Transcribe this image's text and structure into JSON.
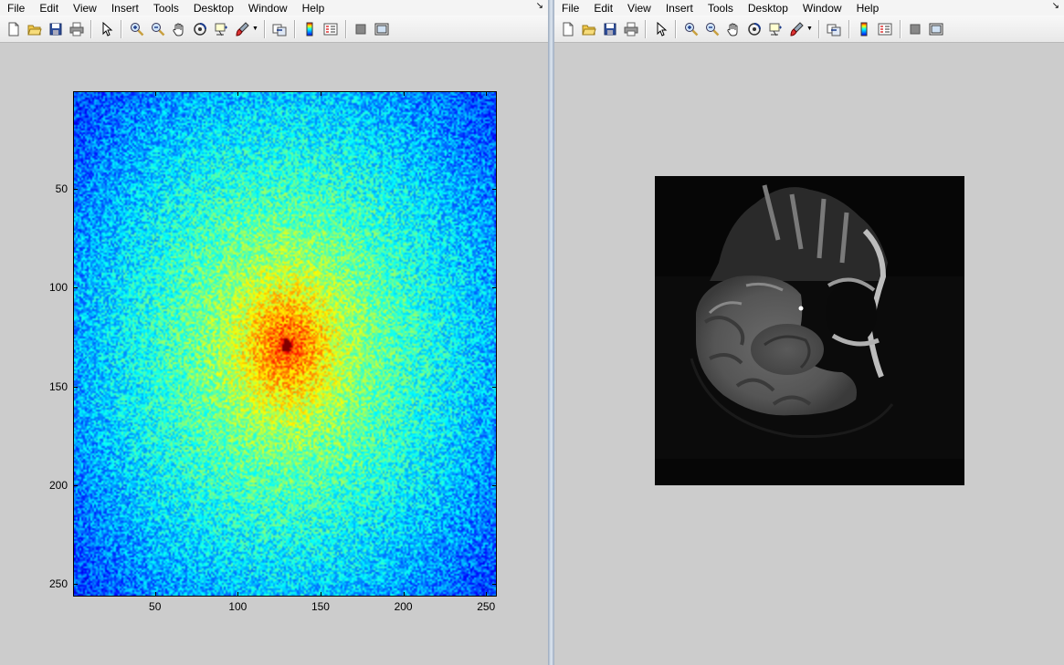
{
  "menu": [
    "File",
    "Edit",
    "View",
    "Insert",
    "Tools",
    "Desktop",
    "Window",
    "Help"
  ],
  "dock_glyph": "↘",
  "toolbar_icons": [
    "new-figure-icon",
    "open-file-icon",
    "save-icon",
    "print-icon",
    "select-arrow-icon",
    "zoom-in-icon",
    "zoom-out-icon",
    "pan-hand-icon",
    "rotate-3d-icon",
    "data-cursor-icon",
    "brush-icon",
    "link-plot-icon",
    "colorbar-icon",
    "legend-icon",
    "hide-plot-tools-icon",
    "show-plot-tools-icon"
  ],
  "left_figure": {
    "chart_data": {
      "type": "heatmap",
      "colormap": "jet",
      "x_ticks": [
        "50",
        "100",
        "150",
        "200",
        "250"
      ],
      "y_ticks": [
        "50",
        "100",
        "150",
        "200",
        "250"
      ],
      "xlim": [
        1,
        256
      ],
      "ylim": [
        1,
        256
      ],
      "peak": [
        129,
        129
      ],
      "grid": false
    }
  },
  "right_figure": {
    "image": "grayscale-mri-sagittal-head-slice"
  }
}
